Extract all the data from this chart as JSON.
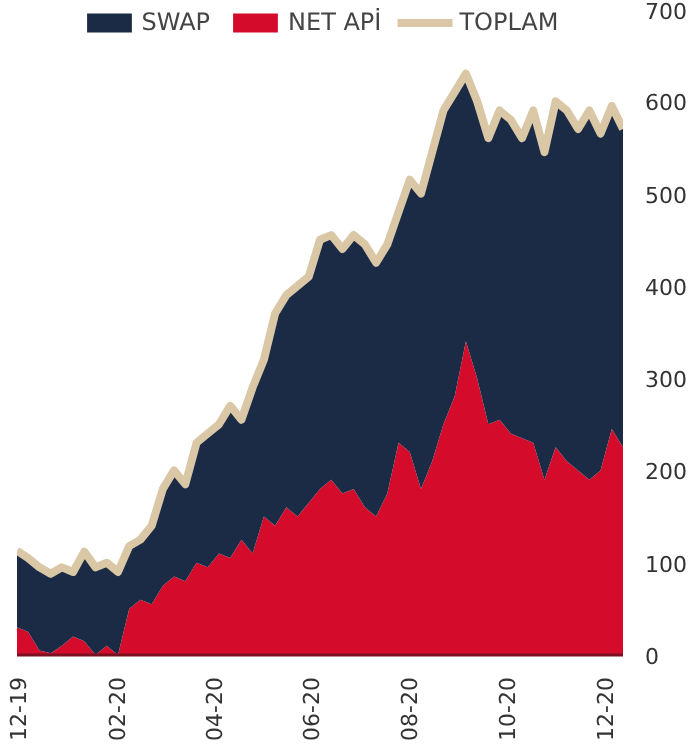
{
  "chart_data": {
    "type": "area",
    "stacked": true,
    "legend": "top",
    "x": [
      "2019-12-01",
      "2019-12-08",
      "2019-12-15",
      "2019-12-22",
      "2019-12-29",
      "2020-01-05",
      "2020-01-12",
      "2020-01-19",
      "2020-01-26",
      "2020-02-02",
      "2020-02-09",
      "2020-02-16",
      "2020-02-23",
      "2020-03-01",
      "2020-03-08",
      "2020-03-15",
      "2020-03-22",
      "2020-03-29",
      "2020-04-05",
      "2020-04-12",
      "2020-04-19",
      "2020-04-26",
      "2020-05-03",
      "2020-05-10",
      "2020-05-17",
      "2020-05-24",
      "2020-05-31",
      "2020-06-07",
      "2020-06-14",
      "2020-06-21",
      "2020-06-28",
      "2020-07-05",
      "2020-07-12",
      "2020-07-19",
      "2020-07-26",
      "2020-08-02",
      "2020-08-09",
      "2020-08-16",
      "2020-08-23",
      "2020-08-30",
      "2020-09-06",
      "2020-09-13",
      "2020-09-20",
      "2020-09-27",
      "2020-10-04",
      "2020-10-11",
      "2020-10-18",
      "2020-10-25",
      "2020-11-01",
      "2020-11-08",
      "2020-11-15",
      "2020-11-22",
      "2020-11-29",
      "2020-12-06",
      "2020-12-13"
    ],
    "series": [
      {
        "name": "NET APİ",
        "color": "#d50b2b",
        "values": [
          30,
          25,
          5,
          2,
          10,
          20,
          15,
          0,
          10,
          0,
          50,
          60,
          55,
          75,
          85,
          80,
          100,
          95,
          110,
          105,
          125,
          110,
          150,
          140,
          160,
          150,
          165,
          180,
          190,
          175,
          180,
          160,
          150,
          175,
          230,
          220,
          180,
          210,
          250,
          280,
          340,
          300,
          250,
          255,
          240,
          235,
          230,
          190,
          225,
          210,
          200,
          190,
          200,
          245,
          225
        ]
      },
      {
        "name": "SWAP",
        "color": "#1c2b45",
        "values": [
          83,
          80,
          90,
          86,
          85,
          70,
          97,
          95,
          90,
          90,
          68,
          65,
          85,
          105,
          115,
          105,
          130,
          145,
          140,
          165,
          130,
          180,
          170,
          230,
          230,
          250,
          245,
          270,
          265,
          265,
          275,
          285,
          275,
          270,
          250,
          295,
          320,
          335,
          340,
          330,
          290,
          300,
          310,
          335,
          340,
          325,
          360,
          355,
          375,
          380,
          370,
          400,
          365,
          350,
          345
        ]
      },
      {
        "name": "TOPLAM",
        "type": "line",
        "color": "#d9c7a5",
        "values": [
          113,
          105,
          95,
          88,
          95,
          90,
          112,
          95,
          100,
          90,
          118,
          125,
          140,
          180,
          200,
          185,
          230,
          240,
          250,
          270,
          255,
          290,
          320,
          370,
          390,
          400,
          410,
          450,
          455,
          440,
          455,
          445,
          425,
          445,
          480,
          515,
          500,
          545,
          590,
          610,
          630,
          600,
          560,
          590,
          580,
          560,
          590,
          545,
          600,
          590,
          570,
          590,
          565,
          595,
          570
        ]
      }
    ],
    "xlim": [
      "2019-12-01",
      "2020-12-13"
    ],
    "xticks": [
      {
        "value": "2019-12-01",
        "label": "12-19"
      },
      {
        "value": "2020-02-01",
        "label": "02-20"
      },
      {
        "value": "2020-04-01",
        "label": "04-20"
      },
      {
        "value": "2020-06-01",
        "label": "06-20"
      },
      {
        "value": "2020-08-01",
        "label": "08-20"
      },
      {
        "value": "2020-10-01",
        "label": "10-20"
      },
      {
        "value": "2020-12-01",
        "label": "12-20"
      }
    ],
    "ylim": [
      0,
      700
    ],
    "yticks": [
      0,
      100,
      200,
      300,
      400,
      500,
      600,
      700
    ]
  }
}
